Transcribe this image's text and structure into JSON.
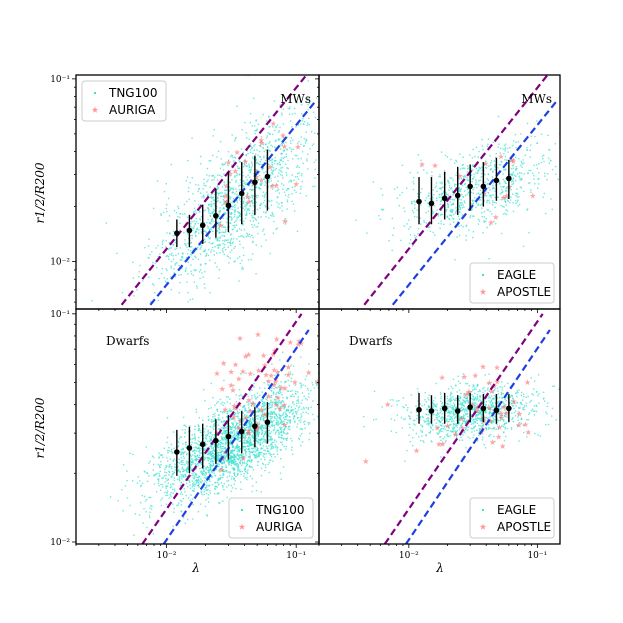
{
  "figure": {
    "ylabel": "r1/2/R200",
    "xlabel": "λ",
    "x_tick_labels": [
      "10⁻²",
      "10⁻¹"
    ],
    "y_tick_labels_top": [
      "10⁻¹",
      "10⁻²"
    ],
    "y_tick_labels_bottom": [
      "10⁻¹",
      "10⁻²"
    ]
  },
  "colors": {
    "sim_points": "#40e0d0",
    "zoom_points": "#ff6b6b",
    "median": "#000000",
    "purple_line": "#800080",
    "blue_line": "#1f3fe0"
  },
  "chart_data": [
    {
      "type": "scatter",
      "panel": "top-left",
      "label": "MWs",
      "xscale": "log",
      "yscale": "log",
      "xlim": [
        0.002,
        0.15
      ],
      "ylim": [
        0.0055,
        0.105
      ],
      "legend": {
        "placement": "top-left",
        "entries": [
          "TNG100",
          "AURIGA"
        ]
      },
      "series": [
        {
          "name": "TNG100",
          "marker": "dot",
          "n_points": 1400,
          "x_center": 0.035,
          "x_spread_dex": 0.32,
          "y_center": 0.022,
          "y_spread_dex": 0.16,
          "y_slope": 0.55
        },
        {
          "name": "AURIGA",
          "marker": "star",
          "n_points": 28,
          "x_center": 0.045,
          "x_spread_dex": 0.2,
          "y_center": 0.03,
          "y_spread_dex": 0.18,
          "y_slope": 0.5
        }
      ],
      "median": {
        "x": [
          0.012,
          0.015,
          0.019,
          0.024,
          0.03,
          0.038,
          0.048,
          0.06
        ],
        "y": [
          0.0143,
          0.0148,
          0.0158,
          0.0178,
          0.0203,
          0.0236,
          0.0272,
          0.0292
        ],
        "yerr_low": [
          0.012,
          0.012,
          0.0125,
          0.0135,
          0.0145,
          0.016,
          0.018,
          0.019
        ],
        "yerr_high": [
          0.017,
          0.018,
          0.0205,
          0.025,
          0.031,
          0.035,
          0.038,
          0.041
        ]
      },
      "lines": [
        {
          "name": "purple",
          "x": [
            0.0045,
            0.12
          ],
          "y": [
            0.0058,
            0.105
          ]
        },
        {
          "name": "blue",
          "x": [
            0.0075,
            0.14
          ],
          "y": [
            0.0058,
            0.075
          ]
        }
      ]
    },
    {
      "type": "scatter",
      "panel": "top-right",
      "label": "MWs",
      "xscale": "log",
      "yscale": "log",
      "xlim": [
        0.002,
        0.15
      ],
      "ylim": [
        0.0055,
        0.105
      ],
      "legend": {
        "placement": "bottom-right",
        "entries": [
          "EAGLE",
          "APOSTLE"
        ]
      },
      "series": [
        {
          "name": "EAGLE",
          "marker": "dot",
          "n_points": 800,
          "x_center": 0.033,
          "x_spread_dex": 0.3,
          "y_center": 0.025,
          "y_spread_dex": 0.11,
          "y_slope": 0.2
        },
        {
          "name": "APOSTLE",
          "marker": "star",
          "n_points": 14,
          "x_center": 0.04,
          "x_spread_dex": 0.25,
          "y_center": 0.03,
          "y_spread_dex": 0.12,
          "y_slope": 0.1
        }
      ],
      "median": {
        "x": [
          0.012,
          0.015,
          0.019,
          0.024,
          0.03,
          0.038,
          0.048,
          0.06
        ],
        "y": [
          0.0213,
          0.0208,
          0.0222,
          0.023,
          0.0258,
          0.0258,
          0.0278,
          0.0285
        ],
        "yerr_low": [
          0.016,
          0.016,
          0.017,
          0.018,
          0.019,
          0.02,
          0.0215,
          0.022
        ],
        "yerr_high": [
          0.029,
          0.029,
          0.031,
          0.033,
          0.034,
          0.035,
          0.037,
          0.036
        ]
      },
      "lines": [
        {
          "name": "purple",
          "x": [
            0.0045,
            0.12
          ],
          "y": [
            0.0058,
            0.105
          ]
        },
        {
          "name": "blue",
          "x": [
            0.0075,
            0.14
          ],
          "y": [
            0.0058,
            0.075
          ]
        }
      ]
    },
    {
      "type": "scatter",
      "panel": "bottom-left",
      "label": "Dwarfs",
      "xscale": "log",
      "yscale": "log",
      "xlim": [
        0.002,
        0.15
      ],
      "ylim": [
        0.0098,
        0.105
      ],
      "legend": {
        "placement": "bottom-right",
        "entries": [
          "TNG100",
          "AURIGA"
        ]
      },
      "series": [
        {
          "name": "TNG100",
          "marker": "dot",
          "n_points": 2600,
          "x_center": 0.032,
          "x_spread_dex": 0.3,
          "y_center": 0.027,
          "y_spread_dex": 0.09,
          "y_slope": 0.3
        },
        {
          "name": "AURIGA",
          "marker": "star",
          "n_points": 70,
          "x_center": 0.05,
          "x_spread_dex": 0.2,
          "y_center": 0.045,
          "y_spread_dex": 0.12,
          "y_slope": 0.3
        }
      ],
      "median": {
        "x": [
          0.012,
          0.015,
          0.019,
          0.024,
          0.03,
          0.038,
          0.048,
          0.06
        ],
        "y": [
          0.0248,
          0.0258,
          0.0268,
          0.0278,
          0.029,
          0.0305,
          0.0322,
          0.0335
        ],
        "yerr_low": [
          0.0195,
          0.02,
          0.021,
          0.022,
          0.023,
          0.0245,
          0.026,
          0.027
        ],
        "yerr_high": [
          0.031,
          0.032,
          0.033,
          0.0345,
          0.036,
          0.0375,
          0.039,
          0.041
        ]
      },
      "lines": [
        {
          "name": "purple",
          "x": [
            0.0065,
            0.11
          ],
          "y": [
            0.0098,
            0.1
          ]
        },
        {
          "name": "blue",
          "x": [
            0.0095,
            0.125
          ],
          "y": [
            0.0098,
            0.085
          ]
        }
      ]
    },
    {
      "type": "scatter",
      "panel": "bottom-right",
      "label": "Dwarfs",
      "xscale": "log",
      "yscale": "log",
      "xlim": [
        0.002,
        0.15
      ],
      "ylim": [
        0.0098,
        0.105
      ],
      "legend": {
        "placement": "bottom-right",
        "entries": [
          "EAGLE",
          "APOSTLE"
        ]
      },
      "series": [
        {
          "name": "EAGLE",
          "marker": "dot",
          "n_points": 1100,
          "x_center": 0.03,
          "x_spread_dex": 0.26,
          "y_center": 0.037,
          "y_spread_dex": 0.06,
          "y_slope": 0.05
        },
        {
          "name": "APOSTLE",
          "marker": "star",
          "n_points": 45,
          "x_center": 0.035,
          "x_spread_dex": 0.3,
          "y_center": 0.038,
          "y_spread_dex": 0.1,
          "y_slope": 0.05
        }
      ],
      "median": {
        "x": [
          0.012,
          0.015,
          0.019,
          0.024,
          0.03,
          0.038,
          0.048,
          0.06
        ],
        "y": [
          0.038,
          0.0375,
          0.0385,
          0.0375,
          0.039,
          0.0385,
          0.0378,
          0.0385
        ],
        "yerr_low": [
          0.033,
          0.033,
          0.033,
          0.033,
          0.0335,
          0.0335,
          0.033,
          0.0335
        ],
        "yerr_high": [
          0.045,
          0.044,
          0.045,
          0.044,
          0.045,
          0.0445,
          0.0445,
          0.0445
        ]
      },
      "lines": [
        {
          "name": "purple",
          "x": [
            0.0065,
            0.11
          ],
          "y": [
            0.0098,
            0.1
          ]
        },
        {
          "name": "blue",
          "x": [
            0.0095,
            0.125
          ],
          "y": [
            0.0098,
            0.085
          ]
        }
      ]
    }
  ]
}
